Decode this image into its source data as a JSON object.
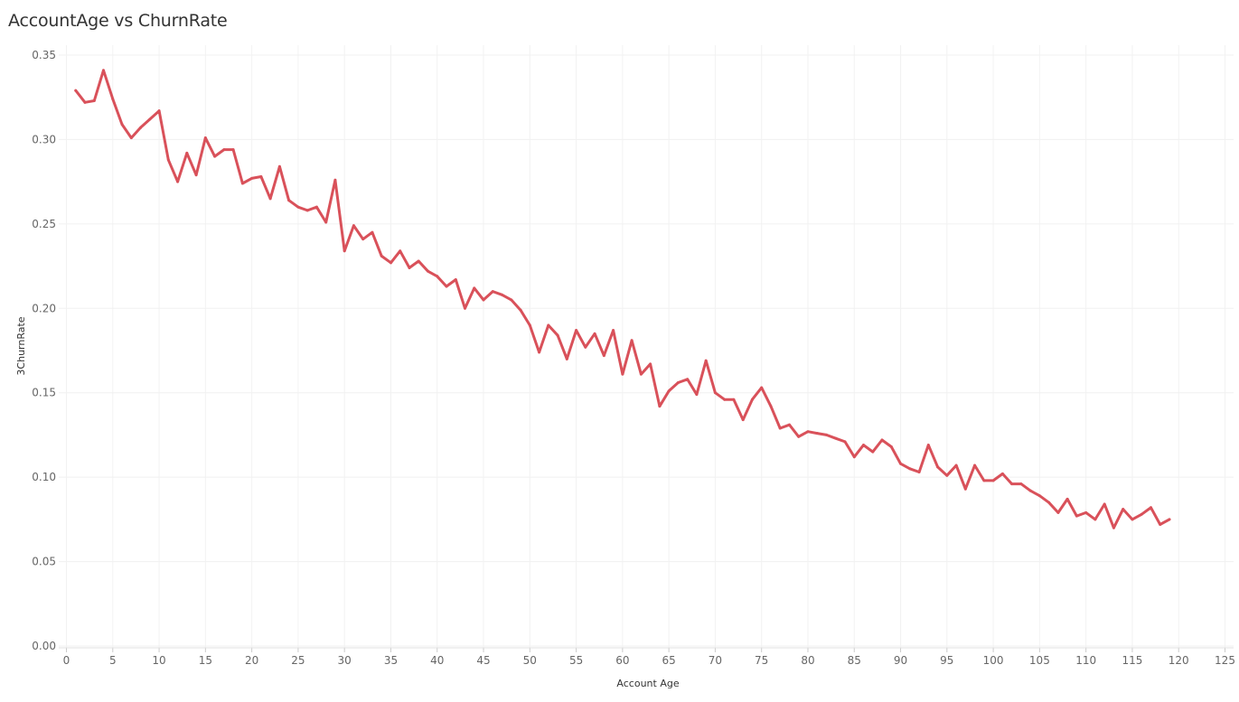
{
  "chart_data": {
    "type": "line",
    "title": "AccountAge vs ChurnRate",
    "xlabel": "Account Age",
    "ylabel": "3ChurnRate",
    "xlim": [
      0,
      125
    ],
    "ylim": [
      0,
      0.35
    ],
    "x_ticks": [
      0,
      5,
      10,
      15,
      20,
      25,
      30,
      35,
      40,
      45,
      50,
      55,
      60,
      65,
      70,
      75,
      80,
      85,
      90,
      95,
      100,
      105,
      110,
      115,
      120,
      125
    ],
    "y_ticks": [
      "0.00",
      "0.05",
      "0.10",
      "0.15",
      "0.20",
      "0.25",
      "0.30",
      "0.35"
    ],
    "grid": true,
    "legend": "none",
    "series": [
      {
        "color": "#d9515a",
        "x": [
          1,
          2,
          3,
          4,
          5,
          6,
          7,
          8,
          9,
          10,
          11,
          12,
          13,
          14,
          15,
          16,
          17,
          18,
          19,
          20,
          21,
          22,
          23,
          24,
          25,
          26,
          27,
          28,
          29,
          30,
          31,
          32,
          33,
          34,
          35,
          36,
          37,
          38,
          39,
          40,
          41,
          42,
          43,
          44,
          45,
          46,
          47,
          48,
          49,
          50,
          51,
          52,
          53,
          54,
          55,
          56,
          57,
          58,
          59,
          60,
          61,
          62,
          63,
          64,
          65,
          66,
          67,
          68,
          69,
          70,
          71,
          72,
          73,
          74,
          75,
          76,
          77,
          78,
          79,
          80,
          81,
          82,
          83,
          84,
          85,
          86,
          87,
          88,
          89,
          90,
          91,
          92,
          93,
          94,
          95,
          96,
          97,
          98,
          99,
          100,
          101,
          102,
          103,
          104,
          105,
          106,
          107,
          108,
          109,
          110,
          111,
          112,
          113,
          114,
          115,
          116,
          117,
          118,
          119
        ],
        "y": [
          0.329,
          0.322,
          0.323,
          0.341,
          0.324,
          0.309,
          0.301,
          0.307,
          0.312,
          0.317,
          0.288,
          0.275,
          0.292,
          0.279,
          0.301,
          0.29,
          0.294,
          0.294,
          0.274,
          0.277,
          0.278,
          0.265,
          0.284,
          0.264,
          0.26,
          0.258,
          0.26,
          0.251,
          0.276,
          0.234,
          0.249,
          0.241,
          0.245,
          0.231,
          0.227,
          0.234,
          0.224,
          0.228,
          0.222,
          0.219,
          0.213,
          0.217,
          0.2,
          0.212,
          0.205,
          0.21,
          0.208,
          0.205,
          0.199,
          0.19,
          0.174,
          0.19,
          0.184,
          0.17,
          0.187,
          0.177,
          0.185,
          0.172,
          0.187,
          0.161,
          0.181,
          0.161,
          0.167,
          0.142,
          0.151,
          0.156,
          0.158,
          0.149,
          0.169,
          0.15,
          0.146,
          0.146,
          0.134,
          0.146,
          0.153,
          0.142,
          0.129,
          0.131,
          0.124,
          0.127,
          0.126,
          0.125,
          0.123,
          0.121,
          0.112,
          0.119,
          0.115,
          0.122,
          0.118,
          0.108,
          0.105,
          0.103,
          0.119,
          0.106,
          0.101,
          0.107,
          0.093,
          0.107,
          0.098,
          0.098,
          0.102,
          0.096,
          0.096,
          0.092,
          0.089,
          0.085,
          0.079,
          0.087,
          0.077,
          0.079,
          0.075,
          0.084,
          0.07,
          0.081,
          0.075,
          0.078,
          0.082,
          0.072,
          0.075
        ]
      }
    ]
  }
}
